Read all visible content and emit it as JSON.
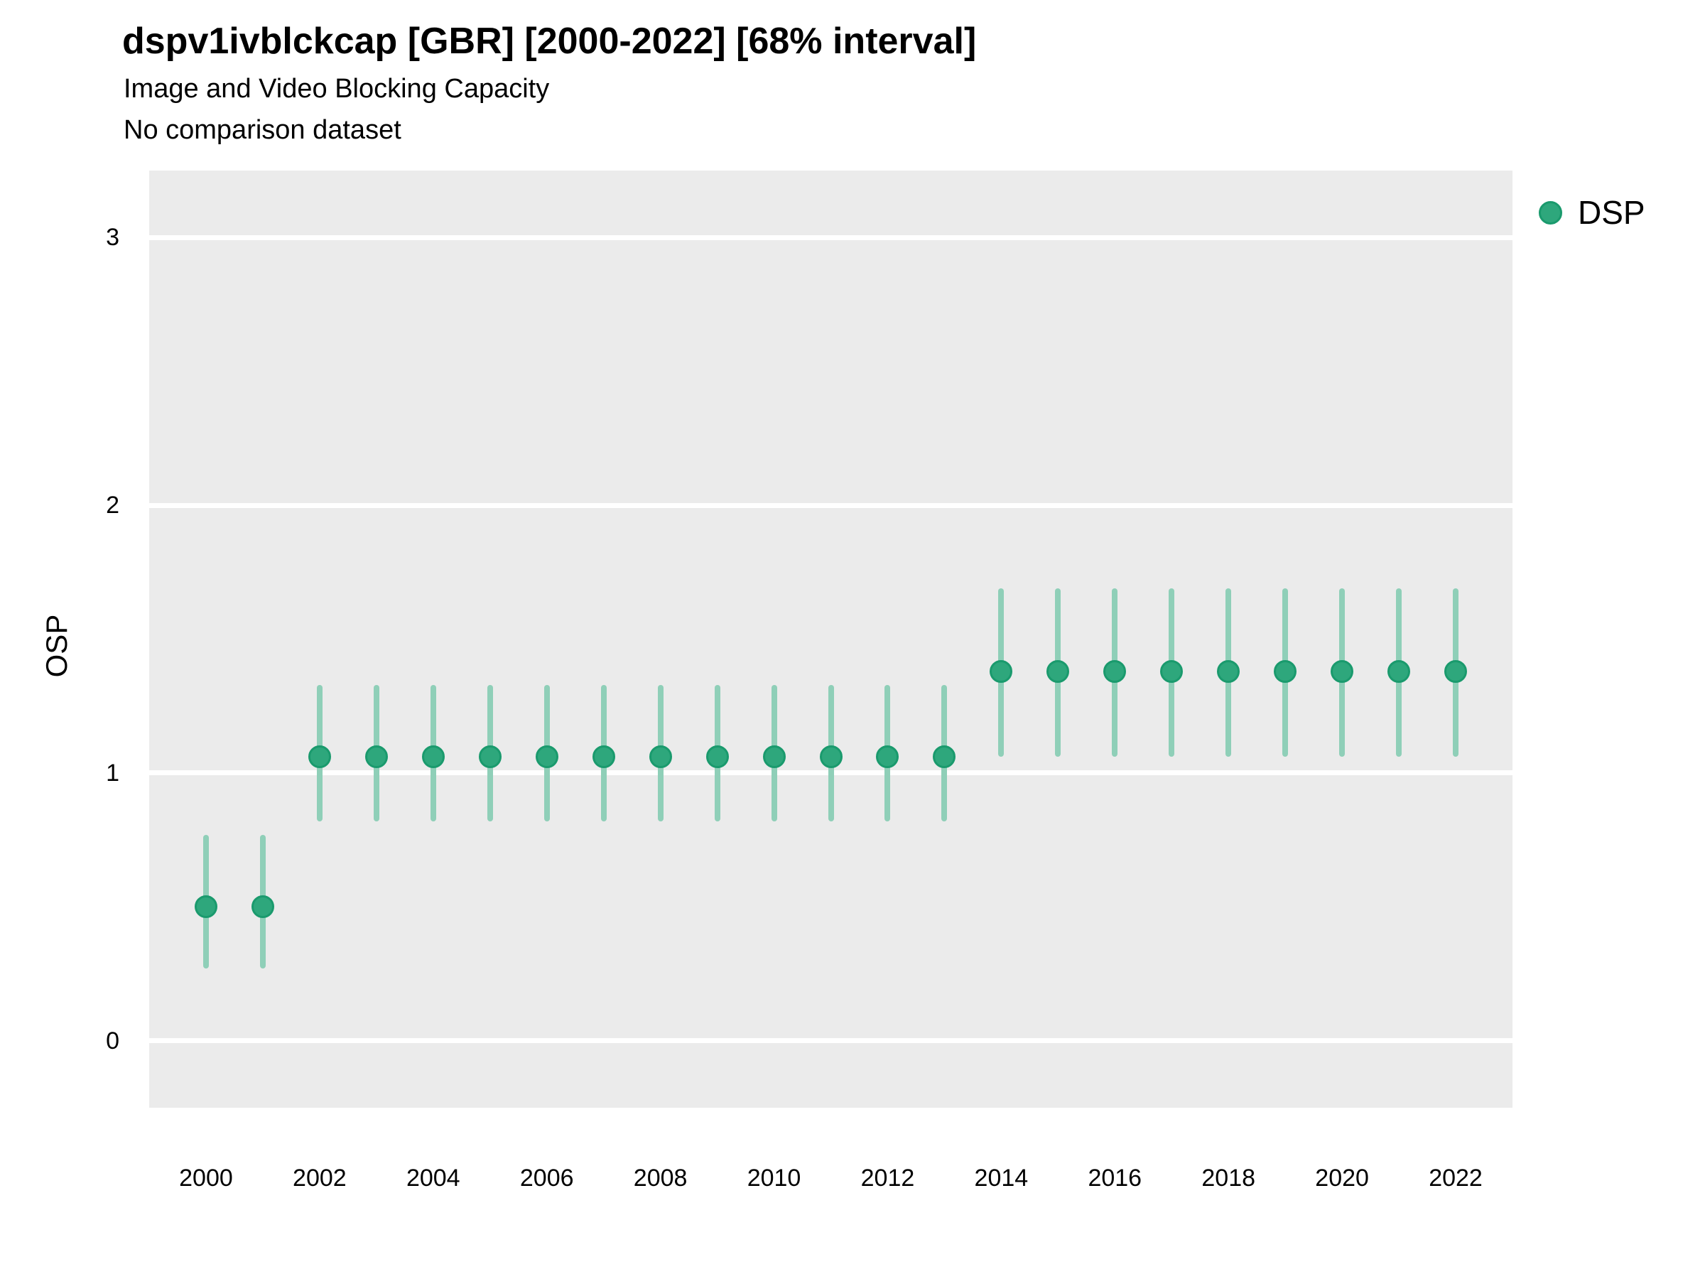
{
  "header": {
    "title": "dspv1ivblckcap [GBR] [2000-2022] [68% interval]",
    "subtitle": "Image and Video Blocking Capacity",
    "comparison_note": "No comparison dataset"
  },
  "axes": {
    "y_label": "OSP",
    "x_label": ""
  },
  "legend": {
    "position": "right",
    "items": [
      {
        "label": "DSP",
        "color": "#2EA77C"
      }
    ]
  },
  "colors": {
    "point_fill": "#2EA77C",
    "point_stroke": "#1A9A6D",
    "errorbar": "#8FCFB8",
    "panel_bg": "#EBEBEB",
    "gridline": "#FFFFFF",
    "text": "#000000"
  },
  "chart_data": {
    "type": "scatter",
    "title": "dspv1ivblckcap [GBR] [2000-2022] [68% interval]",
    "subtitle": "Image and Video Blocking Capacity",
    "note": "No comparison dataset",
    "xlabel": "",
    "ylabel": "OSP",
    "interval_level": "68%",
    "grid": "horizontal-major-only",
    "legend_position": "right",
    "xlim": [
      1999,
      2023
    ],
    "ylim": [
      -0.25,
      3.25
    ],
    "x_ticks": [
      2000,
      2002,
      2004,
      2006,
      2008,
      2010,
      2012,
      2014,
      2016,
      2018,
      2020,
      2022
    ],
    "y_ticks": [
      0,
      1,
      2,
      3
    ],
    "x": [
      2000,
      2001,
      2002,
      2003,
      2004,
      2005,
      2006,
      2007,
      2008,
      2009,
      2010,
      2011,
      2012,
      2013,
      2014,
      2015,
      2016,
      2017,
      2018,
      2019,
      2020,
      2021,
      2022
    ],
    "series": [
      {
        "name": "DSP",
        "estimates": [
          0.5,
          0.5,
          1.06,
          1.06,
          1.06,
          1.06,
          1.06,
          1.06,
          1.06,
          1.06,
          1.06,
          1.06,
          1.06,
          1.06,
          1.38,
          1.38,
          1.38,
          1.38,
          1.38,
          1.38,
          1.38,
          1.38,
          1.38
        ],
        "lower": [
          0.27,
          0.27,
          0.82,
          0.82,
          0.82,
          0.82,
          0.82,
          0.82,
          0.82,
          0.82,
          0.82,
          0.82,
          0.82,
          0.82,
          1.06,
          1.06,
          1.06,
          1.06,
          1.06,
          1.06,
          1.06,
          1.06,
          1.06
        ],
        "upper": [
          0.77,
          0.77,
          1.33,
          1.33,
          1.33,
          1.33,
          1.33,
          1.33,
          1.33,
          1.33,
          1.33,
          1.33,
          1.33,
          1.33,
          1.69,
          1.69,
          1.69,
          1.69,
          1.69,
          1.69,
          1.69,
          1.69,
          1.69
        ]
      }
    ]
  }
}
